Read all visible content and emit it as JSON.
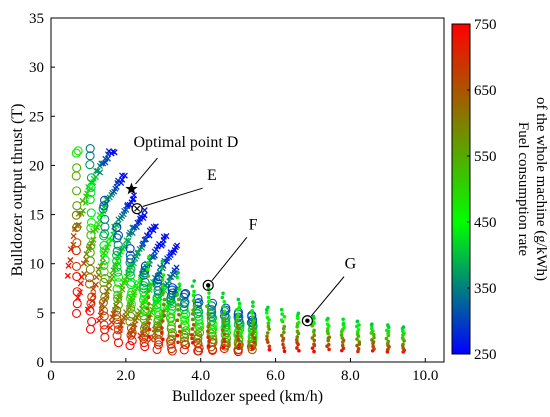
{
  "chart_data": {
    "type": "scatter",
    "xlabel": "Bulldozer speed (km/h)",
    "ylabel": "Bulldozer output thrust (T)",
    "xlim": [
      0,
      10.5
    ],
    "ylim": [
      0,
      35
    ],
    "x_ticks": [
      0,
      2.0,
      4.0,
      6.0,
      8.0,
      10.0
    ],
    "x_tick_labels": [
      "0",
      "2.0",
      "4.0",
      "6.0",
      "8.0",
      "10.0"
    ],
    "y_ticks": [
      0,
      5,
      10,
      15,
      20,
      25,
      30,
      35
    ],
    "y_tick_labels": [
      "0",
      "5",
      "10",
      "15",
      "20",
      "25",
      "30",
      "35"
    ],
    "colorbar": {
      "title_lines": [
        "Fuel consumption rate",
        "of the whole machine (g/kWh)"
      ],
      "range": [
        250,
        750
      ],
      "ticks": [
        250,
        350,
        450,
        550,
        650,
        750
      ],
      "tick_labels": [
        "250",
        "350",
        "450",
        "550",
        "650",
        "750"
      ],
      "colormap": [
        "#0000ff",
        "#00ff00",
        "#ff0000"
      ]
    },
    "marker_types": [
      "cross",
      "circle",
      "dot"
    ],
    "annotations": [
      {
        "label": "Optimal point D",
        "marker": "star",
        "x": 2.15,
        "y": 17.6,
        "text_x": 2.2,
        "text_y": 21.8
      },
      {
        "label": "E",
        "marker": "circled-x",
        "x": 2.3,
        "y": 15.6,
        "text_x": 4.3,
        "text_y": 18.5
      },
      {
        "label": "F",
        "marker": "circled-dot",
        "x": 4.2,
        "y": 7.8,
        "text_x": 5.4,
        "text_y": 13.5
      },
      {
        "label": "G",
        "marker": "circled-dot",
        "x": 6.85,
        "y": 4.2,
        "text_x": 8.0,
        "text_y": 9.5
      }
    ]
  }
}
